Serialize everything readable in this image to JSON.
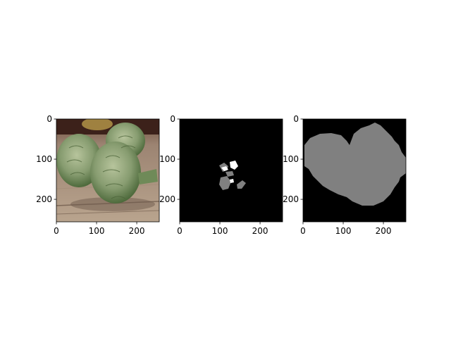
{
  "chart_data": [
    {
      "type": "image",
      "content": "photo of artichokes on wooden table",
      "xlim": [
        0,
        256
      ],
      "ylim": [
        256,
        0
      ],
      "xticks": [
        0,
        100,
        200
      ],
      "yticks": [
        0,
        100,
        200
      ],
      "colors": {
        "wood": "#b49f8a",
        "wood_dark": "#7a6656",
        "background_top": "#3a1f18",
        "artichoke": "#8fa27a",
        "artichoke_dark": "#4f6a3e",
        "artichoke_light": "#b8c6a0"
      }
    },
    {
      "type": "image",
      "content": "sparse segmentation mask",
      "xlim": [
        0,
        256
      ],
      "ylim": [
        256,
        0
      ],
      "xticks": [
        0,
        100,
        200
      ],
      "yticks": [
        0,
        100,
        200
      ],
      "colors": {
        "background": "#000000",
        "region": "#808080",
        "highlight": "#ffffff"
      }
    },
    {
      "type": "image",
      "content": "full segmentation mask",
      "xlim": [
        0,
        256
      ],
      "ylim": [
        256,
        0
      ],
      "xticks": [
        0,
        100,
        200
      ],
      "yticks": [
        0,
        100,
        200
      ],
      "colors": {
        "background": "#000000",
        "region": "#808080"
      }
    }
  ]
}
